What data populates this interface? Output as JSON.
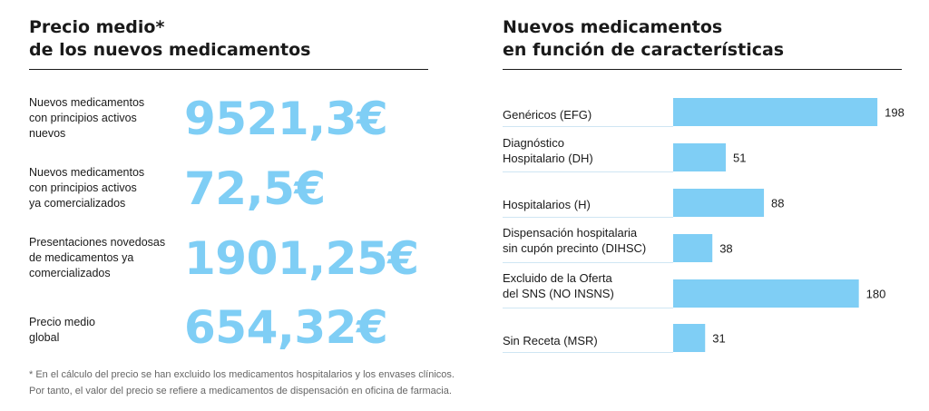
{
  "left_panel": {
    "title_lines": [
      "Precio medio*",
      "de los nuevos medicamentos"
    ],
    "prices": [
      {
        "label_lines": [
          "Nuevos medicamentos",
          "con principios activos",
          "nuevos"
        ],
        "value": "9521,3€"
      },
      {
        "label_lines": [
          "Nuevos medicamentos",
          "con principios activos",
          "ya comercializados"
        ],
        "value": "72,5€"
      },
      {
        "label_lines": [
          "Presentaciones novedosas",
          "de medicamentos ya",
          "comercializados"
        ],
        "value": "1901,25€"
      },
      {
        "label_lines": [
          "Precio medio",
          "global"
        ],
        "value": "654,32€"
      }
    ],
    "footnote_lines": [
      "* En el cálculo del precio se han excluido los medicamentos hospitalarios y los envases clínicos.",
      "Por tanto, el valor del precio se refiere a medicamentos de dispensación en oficina de farmacia."
    ]
  },
  "chart_data": {
    "type": "bar",
    "orientation": "horizontal",
    "title": "Nuevos medicamentos en función de características",
    "title_lines": [
      "Nuevos medicamentos",
      "en función de características"
    ],
    "categories": [
      "Genéricos (EFG)",
      "Diagnóstico Hospitalario (DH)",
      "Hospitalarios (H)",
      "Dispensación hospitalaria sin cupón precinto (DIHSC)",
      "Excluido de la Oferta del SNS (NO INSNS)",
      "Sin Receta (MSR)"
    ],
    "category_lines": [
      [
        "Genéricos (EFG)"
      ],
      [
        "Diagnóstico",
        "Hospitalario (DH)"
      ],
      [
        "Hospitalarios (H)"
      ],
      [
        "Dispensación hospitalaria",
        "sin cupón precinto (DIHSC)"
      ],
      [
        "Excluido de la Oferta",
        "del SNS (NO INSNS)"
      ],
      [
        "Sin Receta (MSR)"
      ]
    ],
    "values": [
      198,
      51,
      88,
      38,
      180,
      31
    ],
    "xlim": [
      0,
      200
    ],
    "bar_color": "#7fcef5",
    "grid": false,
    "xlabel": "",
    "ylabel": ""
  }
}
